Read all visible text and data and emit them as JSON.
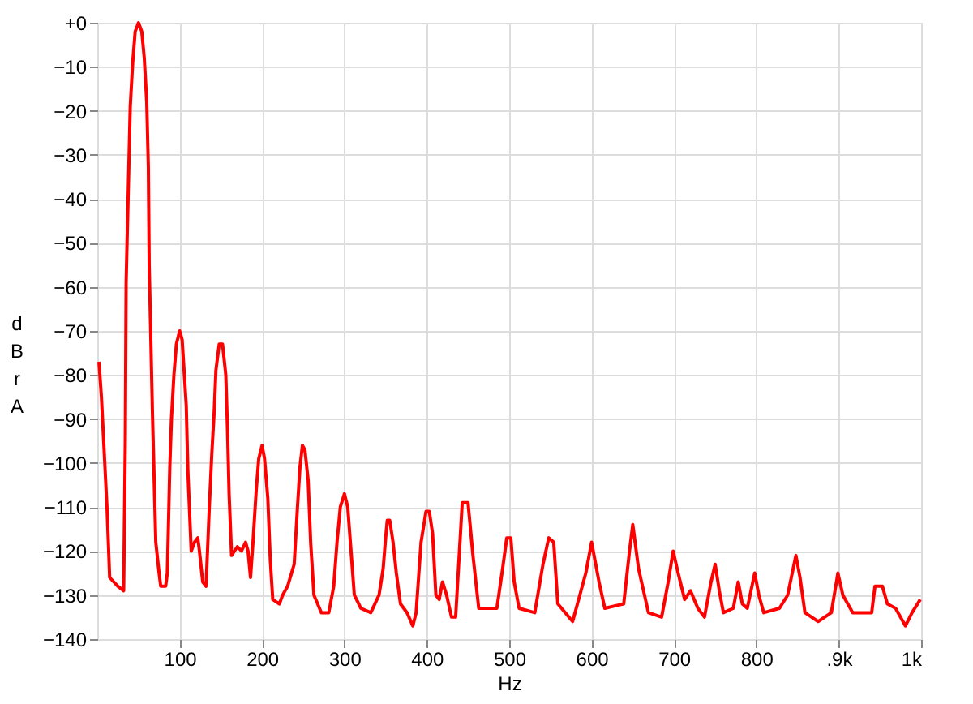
{
  "chart_data": {
    "type": "line",
    "xlabel": "Hz",
    "ylabel": "dBr A",
    "xlim": [
      0,
      1000
    ],
    "ylim": [
      -140,
      0
    ],
    "xticks": [
      100,
      200,
      300,
      400,
      500,
      600,
      700,
      800,
      {
        "value": 900,
        "label": ".9k"
      },
      {
        "value": 1000,
        "label": "1k"
      }
    ],
    "yticks": [
      {
        "value": 0,
        "label": "+0"
      },
      -10,
      -20,
      -30,
      -40,
      -50,
      -60,
      -70,
      -80,
      -90,
      -100,
      -110,
      -120,
      -130,
      -140
    ],
    "grid": true,
    "marker": "none",
    "line_style": "solid",
    "x": [
      2,
      5,
      8,
      12,
      15,
      25,
      32,
      34,
      35,
      38,
      40,
      43,
      46,
      50,
      54,
      57,
      60,
      62,
      63,
      67,
      71,
      75,
      77,
      83,
      85,
      88,
      90,
      93,
      96,
      100,
      103,
      105,
      108,
      110,
      114,
      118,
      122,
      124,
      128,
      132,
      136,
      139,
      142,
      144,
      148,
      152,
      156,
      158,
      160,
      163,
      170,
      175,
      180,
      183,
      186,
      189,
      193,
      196,
      200,
      203,
      207,
      210,
      213,
      221,
      225,
      231,
      239,
      243,
      246,
      249,
      252,
      256,
      259,
      263,
      272,
      281,
      287,
      291,
      295,
      300,
      304,
      308,
      312,
      320,
      332,
      342,
      347,
      350,
      352,
      355,
      359,
      363,
      368,
      376,
      383,
      387,
      393,
      399,
      403,
      407,
      411,
      415,
      419,
      424,
      430,
      435,
      443,
      450,
      456,
      463,
      485,
      492,
      497,
      502,
      506,
      512,
      531,
      541,
      548,
      554,
      559,
      577,
      593,
      600,
      609,
      616,
      639,
      646,
      650,
      657,
      669,
      685,
      693,
      699,
      705,
      713,
      720,
      729,
      737,
      745,
      750,
      755,
      760,
      772,
      778,
      783,
      789,
      798,
      803,
      809,
      828,
      838,
      848,
      853,
      859,
      875,
      891,
      899,
      905,
      917,
      940,
      944,
      948,
      953,
      959,
      969,
      981,
      989,
      999
    ],
    "series": [
      {
        "color": "#ff0000",
        "values": [
          -77,
          -85,
          -96,
          -111,
          -126,
          -128,
          -129,
          -95,
          -59,
          -35,
          -19,
          -9,
          -2,
          0,
          -2,
          -8,
          -18,
          -33,
          -55,
          -89,
          -118,
          -125,
          -128,
          -128,
          -125,
          -101,
          -90,
          -80,
          -73,
          -70,
          -72,
          -78,
          -87,
          -102,
          -120,
          -118,
          -117,
          -120,
          -127,
          -128,
          -110,
          -98,
          -88,
          -79,
          -73,
          -73,
          -80,
          -92,
          -107,
          -121,
          -119,
          -120,
          -118,
          -120,
          -126,
          -118,
          -106,
          -99,
          -96,
          -99,
          -108,
          -122,
          -131,
          -132,
          -130,
          -128,
          -123,
          -110,
          -101,
          -96,
          -97,
          -104,
          -118,
          -130,
          -134,
          -134,
          -128,
          -118,
          -110,
          -107,
          -110,
          -120,
          -130,
          -133,
          -134,
          -130,
          -124,
          -117,
          -113,
          -113,
          -118,
          -125,
          -132,
          -134,
          -137,
          -134,
          -118,
          -111,
          -111,
          -116,
          -130,
          -131,
          -127,
          -130,
          -135,
          -135,
          -109,
          -109,
          -121,
          -133,
          -133,
          -124,
          -117,
          -117,
          -127,
          -133,
          -134,
          -123,
          -117,
          -118,
          -132,
          -136,
          -125,
          -118,
          -127,
          -133,
          -132,
          -120,
          -114,
          -124,
          -134,
          -135,
          -127,
          -120,
          -125,
          -131,
          -129,
          -133,
          -135,
          -127,
          -123,
          -129,
          -134,
          -133,
          -127,
          -132,
          -133,
          -125,
          -130,
          -134,
          -133,
          -130,
          -121,
          -126,
          -134,
          -136,
          -134,
          -125,
          -130,
          -134,
          -134,
          -128,
          -128,
          -128,
          -132,
          -133,
          -137,
          -134,
          -131
        ]
      }
    ]
  }
}
